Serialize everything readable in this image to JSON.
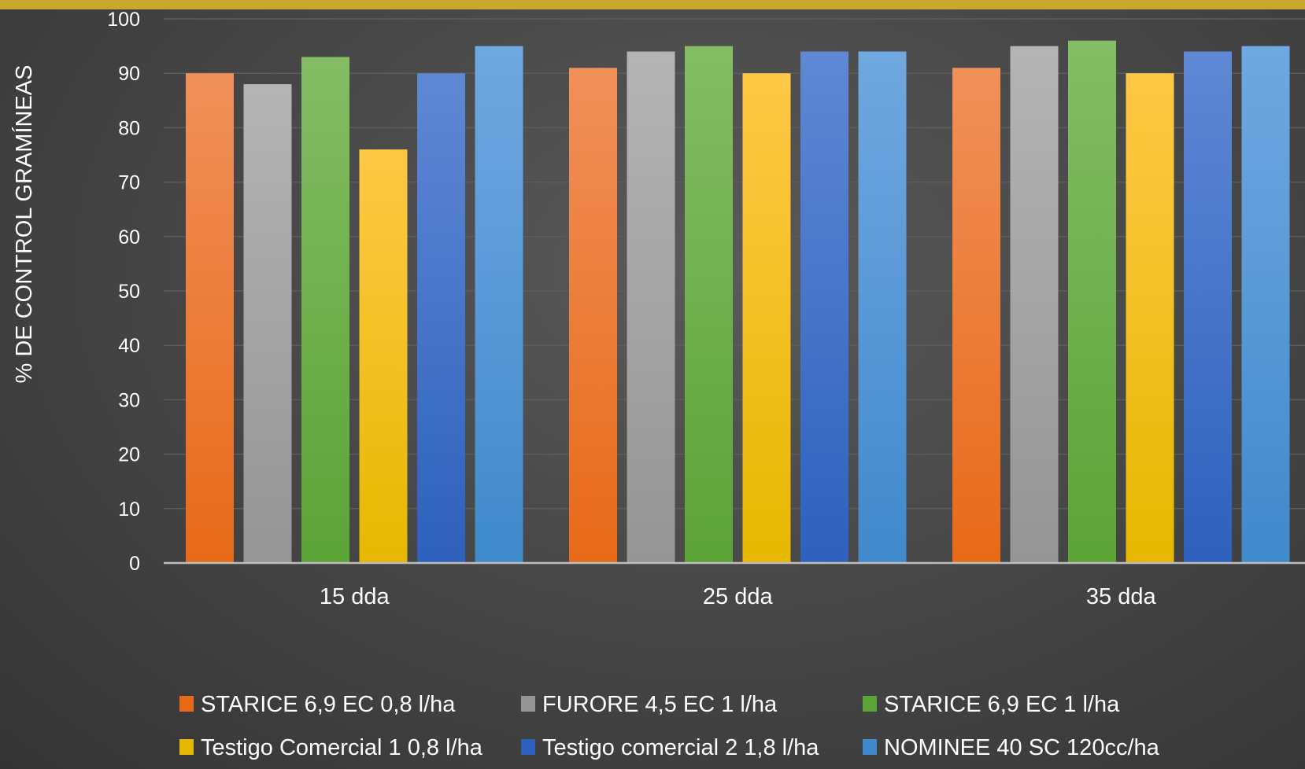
{
  "theme": {
    "top_bar_color": "#c8a82c",
    "gridline_color": "#5c5c5c",
    "axis_color": "#bdbdbd",
    "text_color": "#ffffff"
  },
  "chart_data": {
    "type": "bar",
    "title": "",
    "xlabel": "",
    "ylabel": "% DE CONTROL GRAMÍNEAS",
    "ylim": [
      0,
      100
    ],
    "yticks": [
      0,
      10,
      20,
      30,
      40,
      50,
      60,
      70,
      80,
      90,
      100
    ],
    "grid": true,
    "legend_position": "bottom",
    "categories": [
      "15 dda",
      "25 dda",
      "35 dda"
    ],
    "series": [
      {
        "name": "STARICE 6,9 EC 0,8 l/ha",
        "color_top": "#f0905a",
        "color_bottom": "#e86a18",
        "values": [
          90,
          91,
          91
        ]
      },
      {
        "name": "FURORE 4,5 EC 1 l/ha",
        "color_top": "#b4b4b4",
        "color_bottom": "#959595",
        "values": [
          88,
          94,
          95
        ]
      },
      {
        "name": "STARICE 6,9 EC 1 l/ha",
        "color_top": "#84bd64",
        "color_bottom": "#5ba337",
        "values": [
          93,
          95,
          96
        ]
      },
      {
        "name": "Testigo Comercial 1 0,8 l/ha",
        "color_top": "#ffc845",
        "color_bottom": "#e6b800",
        "values": [
          76,
          90,
          90
        ]
      },
      {
        "name": "Testigo comercial 2 1,8 l/ha",
        "color_top": "#5f88d4",
        "color_bottom": "#2e61bd",
        "values": [
          90,
          94,
          94
        ]
      },
      {
        "name": "NOMINEE 40 SC 120cc/ha",
        "color_top": "#70a8e0",
        "color_bottom": "#4089cc",
        "values": [
          95,
          94,
          95
        ]
      }
    ]
  }
}
